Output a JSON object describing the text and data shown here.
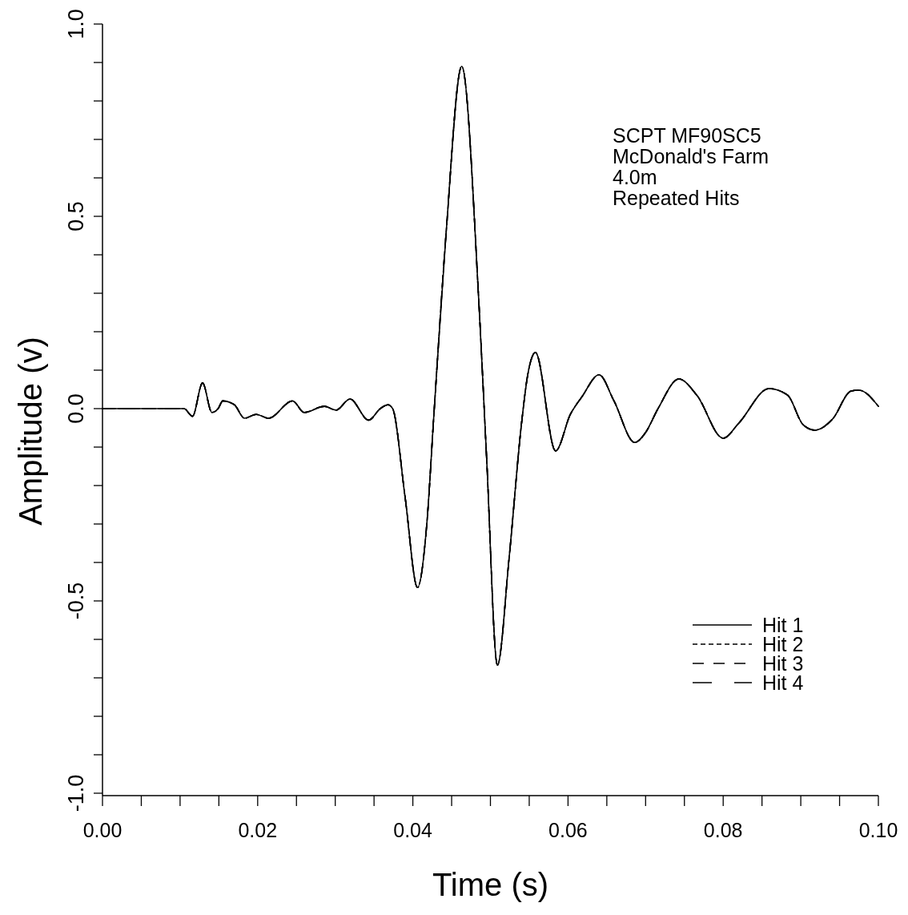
{
  "chart_data": {
    "type": "line",
    "xlabel": "Time (s)",
    "ylabel": "Amplitude (v)",
    "annotations": [
      "SCPT MF90SC5",
      "McDonald's Farm",
      "4.0m",
      "Repeated Hits"
    ],
    "x": [
      0,
      0.002,
      0.004,
      0.006,
      0.008,
      0.0105,
      0.0116,
      0.0129,
      0.0141,
      0.0149,
      0.0155,
      0.017,
      0.0183,
      0.0198,
      0.0214,
      0.0245,
      0.026,
      0.0286,
      0.0301,
      0.0319,
      0.0343,
      0.0358,
      0.0368,
      0.0374,
      0.039,
      0.0406,
      0.0418,
      0.0427,
      0.0443,
      0.0463,
      0.0485,
      0.0495,
      0.0509,
      0.0524,
      0.054,
      0.0548,
      0.0558,
      0.0584,
      0.0603,
      0.0618,
      0.064,
      0.0659,
      0.0686,
      0.07,
      0.0716,
      0.0743,
      0.0766,
      0.08,
      0.082,
      0.0859,
      0.0883,
      0.0903,
      0.0918,
      0.0941,
      0.0965,
      0.0975,
      0.1
    ],
    "series": [
      {
        "name": "Hit 1",
        "color": "#000000",
        "line_style": "solid",
        "values": [
          0,
          0,
          0,
          0,
          0,
          0,
          -0.02,
          0.067,
          -0.01,
          0,
          0.02,
          0.01,
          -0.025,
          -0.015,
          -0.025,
          0.02,
          -0.01,
          0.006,
          -0.004,
          0.025,
          -0.03,
          0,
          0.01,
          0,
          -0.23,
          -0.465,
          -0.3,
          -0.02,
          0.46,
          0.89,
          0.28,
          -0.125,
          -0.667,
          -0.39,
          -0.04,
          0.087,
          0.146,
          -0.11,
          -0.015,
          0.031,
          0.088,
          0.021,
          -0.088,
          -0.062,
          0,
          0.077,
          0.035,
          -0.077,
          -0.038,
          0.052,
          0.035,
          -0.042,
          -0.056,
          -0.027,
          0.046,
          0.048,
          0.006
        ]
      },
      {
        "name": "Hit 2",
        "color": "#000000",
        "line_style": "dotted",
        "values": [
          0,
          0,
          0,
          0,
          0,
          0,
          -0.02,
          0.067,
          -0.01,
          0,
          0.02,
          0.01,
          -0.025,
          -0.015,
          -0.025,
          0.02,
          -0.01,
          0.006,
          -0.004,
          0.025,
          -0.03,
          0,
          0.01,
          0,
          -0.23,
          -0.465,
          -0.3,
          -0.02,
          0.46,
          0.89,
          0.28,
          -0.125,
          -0.667,
          -0.39,
          -0.04,
          0.087,
          0.146,
          -0.11,
          -0.015,
          0.031,
          0.088,
          0.021,
          -0.088,
          -0.062,
          0,
          0.077,
          0.035,
          -0.077,
          -0.038,
          0.052,
          0.035,
          -0.042,
          -0.056,
          -0.027,
          0.046,
          0.048,
          0.006
        ]
      },
      {
        "name": "Hit 3",
        "color": "#000000",
        "line_style": "dashed",
        "values": [
          0,
          0,
          0,
          0,
          0,
          0,
          -0.02,
          0.067,
          -0.01,
          0,
          0.02,
          0.01,
          -0.025,
          -0.015,
          -0.025,
          0.02,
          -0.01,
          0.006,
          -0.004,
          0.025,
          -0.03,
          0,
          0.01,
          0,
          -0.23,
          -0.465,
          -0.3,
          -0.02,
          0.46,
          0.89,
          0.28,
          -0.125,
          -0.667,
          -0.39,
          -0.04,
          0.087,
          0.146,
          -0.11,
          -0.015,
          0.031,
          0.088,
          0.021,
          -0.088,
          -0.062,
          0,
          0.077,
          0.035,
          -0.077,
          -0.038,
          0.052,
          0.035,
          -0.042,
          -0.056,
          -0.027,
          0.046,
          0.048,
          0.006
        ]
      },
      {
        "name": "Hit 4",
        "color": "#000000",
        "line_style": "dashed",
        "values": [
          0,
          0,
          0,
          0,
          0,
          0,
          -0.02,
          0.067,
          -0.01,
          0,
          0.02,
          0.01,
          -0.025,
          -0.015,
          -0.025,
          0.02,
          -0.01,
          0.006,
          -0.004,
          0.025,
          -0.03,
          0,
          0.01,
          0,
          -0.23,
          -0.465,
          -0.3,
          -0.02,
          0.46,
          0.89,
          0.28,
          -0.125,
          -0.667,
          -0.39,
          -0.04,
          0.087,
          0.146,
          -0.11,
          -0.015,
          0.031,
          0.088,
          0.021,
          -0.088,
          -0.062,
          0,
          0.077,
          0.035,
          -0.077,
          -0.038,
          0.052,
          0.035,
          -0.042,
          -0.056,
          -0.027,
          0.046,
          0.048,
          0.006
        ]
      }
    ],
    "xlim": [
      0,
      0.1
    ],
    "xticks": [
      {
        "value": 0,
        "label": "0.00"
      },
      {
        "value": 0.005,
        "label": null
      },
      {
        "value": 0.01,
        "label": null
      },
      {
        "value": 0.015,
        "label": null
      },
      {
        "value": 0.02,
        "label": "0.02"
      },
      {
        "value": 0.025,
        "label": null
      },
      {
        "value": 0.03,
        "label": null
      },
      {
        "value": 0.035,
        "label": null
      },
      {
        "value": 0.04,
        "label": "0.04"
      },
      {
        "value": 0.045,
        "label": null
      },
      {
        "value": 0.05,
        "label": null
      },
      {
        "value": 0.055,
        "label": null
      },
      {
        "value": 0.06,
        "label": "0.06"
      },
      {
        "value": 0.065,
        "label": null
      },
      {
        "value": 0.07,
        "label": null
      },
      {
        "value": 0.075,
        "label": null
      },
      {
        "value": 0.08,
        "label": "0.08"
      },
      {
        "value": 0.085,
        "label": null
      },
      {
        "value": 0.09,
        "label": null
      },
      {
        "value": 0.095,
        "label": null
      },
      {
        "value": 0.1,
        "label": "0.10"
      }
    ],
    "ylim": [
      -1.0,
      1.0
    ],
    "yticks": [
      {
        "value": -1,
        "label": "-1.0"
      },
      {
        "value": -0.9,
        "label": null
      },
      {
        "value": -0.8,
        "label": null
      },
      {
        "value": -0.7,
        "label": null
      },
      {
        "value": -0.6,
        "label": null
      },
      {
        "value": -0.5,
        "label": "-0.5"
      },
      {
        "value": -0.4,
        "label": null
      },
      {
        "value": -0.3,
        "label": null
      },
      {
        "value": -0.2,
        "label": null
      },
      {
        "value": -0.1,
        "label": null
      },
      {
        "value": 0,
        "label": "0.0"
      },
      {
        "value": 0.1,
        "label": null
      },
      {
        "value": 0.2,
        "label": null
      },
      {
        "value": 0.3,
        "label": null
      },
      {
        "value": 0.4,
        "label": null
      },
      {
        "value": 0.5,
        "label": "0.5"
      },
      {
        "value": 0.6,
        "label": null
      },
      {
        "value": 0.7,
        "label": null
      },
      {
        "value": 0.8,
        "label": null
      },
      {
        "value": 0.9,
        "label": null
      },
      {
        "value": 1,
        "label": "1.0"
      }
    ],
    "grid": false,
    "legend": "bottom right",
    "marker": "none"
  }
}
